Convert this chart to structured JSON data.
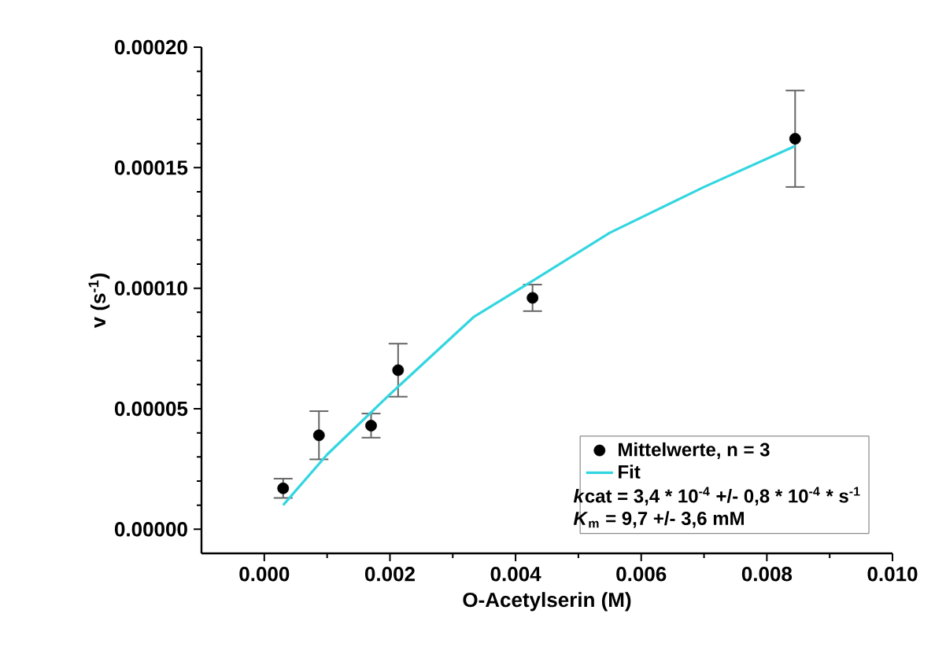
{
  "chart_data": {
    "type": "scatter",
    "xlabel": "O-Acetylserin (M)",
    "ylabel": "v (s$^{-1}$)",
    "xlim": [
      -0.001,
      0.01
    ],
    "ylim": [
      -1e-05,
      0.0002
    ],
    "xticks": [
      {
        "value": 0,
        "label": "0.000"
      },
      {
        "value": 0.002,
        "label": "0.002"
      },
      {
        "value": 0.004,
        "label": "0.004"
      },
      {
        "value": 0.006,
        "label": "0.006"
      },
      {
        "value": 0.008,
        "label": "0.008"
      },
      {
        "value": 0.01,
        "label": "0.010"
      }
    ],
    "yticks": [
      {
        "value": 0,
        "label": "0.00000"
      },
      {
        "value": 5e-05,
        "label": "0.00005"
      },
      {
        "value": 0.0001,
        "label": "0.00010"
      },
      {
        "value": 0.00015,
        "label": "0.00015"
      },
      {
        "value": 0.0002,
        "label": "0.00020"
      }
    ],
    "marker": "circle",
    "legend": "bottom right",
    "grid": false,
    "series": [
      {
        "name": "Mittelwerte, n = 3",
        "color": "#000000",
        "x": [
          0.0003,
          0.00087,
          0.0017,
          0.00213,
          0.00427,
          0.00845
        ],
        "values": [
          1.7e-05,
          3.9e-05,
          4.3e-05,
          6.6e-05,
          9.6e-05,
          0.000162
        ],
        "errors": [
          4e-06,
          1e-05,
          5e-06,
          1.1e-05,
          5.5e-06,
          2e-05
        ]
      },
      {
        "name": "Fit",
        "type": "line",
        "marker": "none",
        "color": "#33d6e0",
        "x": [
          0.0003,
          0.001,
          0.002,
          0.00333,
          0.00427,
          0.0055,
          0.007,
          0.00845
        ],
        "values": [
          1e-05,
          3.1e-05,
          5.6e-05,
          8.8e-05,
          0.000103,
          0.000123,
          0.000142,
          0.000159
        ]
      }
    ],
    "annotations": [
      "*k*",
      "cat = 3,4 * 10$^{-4}$ +/- 0,8 * 10$^{-4}$ * s$^{-1}$",
      "*K*$_{m}$ = 9,7 +/- 3,6 mM"
    ]
  }
}
